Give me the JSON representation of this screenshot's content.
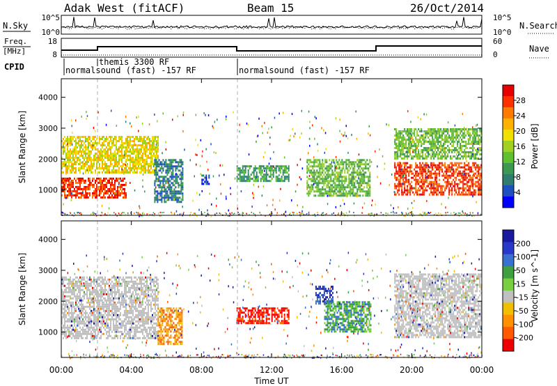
{
  "header": {
    "site": "Adak West (fitACF)",
    "beam": "Beam 15",
    "date": "26/Oct/2014"
  },
  "nsky_panel": {
    "left_label": "N.Sky",
    "right_label": "N.Search",
    "left_ticks": [
      "10^5",
      "10^0"
    ],
    "right_ticks": [
      "10^5",
      "10^0"
    ]
  },
  "freq_panel": {
    "left_label_line1": "Freq.",
    "left_label_line2": "[MHz]",
    "right_label": "Nave",
    "left_ticks": [
      "18",
      "8"
    ],
    "right_ticks": [
      "60",
      "0"
    ]
  },
  "cpid_panel": {
    "label": "CPID",
    "segments": [
      {
        "text": "normalsound (fast) -157 RF"
      },
      {
        "text": "themis 3300 RF"
      },
      {
        "text": "normalsound (fast) -157 RF"
      }
    ]
  },
  "time_axis": {
    "label": "Time UT",
    "ticks": [
      "00:00",
      "04:00",
      "08:00",
      "12:00",
      "16:00",
      "20:00",
      "00:00"
    ]
  },
  "chart_data": [
    {
      "type": "heatmap",
      "title": "",
      "ylabel": "Slant Range [km]",
      "xlabel": "Time UT",
      "ylim": [
        180,
        4600
      ],
      "yticks": [
        1000,
        2000,
        3000,
        4000
      ],
      "x_range_hours": [
        0,
        24
      ],
      "colorbar": {
        "label": "Power [dB]",
        "ticks": [
          4,
          8,
          12,
          16,
          20,
          24,
          28
        ],
        "colors": [
          "#0000ff",
          "#2050c0",
          "#2e7d6e",
          "#3c9a50",
          "#60c030",
          "#a0d020",
          "#f0e000",
          "#ffb000",
          "#ff7a00",
          "#ff3000",
          "#e60000"
        ]
      },
      "echo_regions": [
        {
          "t": [
            0.0,
            3.7
          ],
          "range_km": [
            780,
            1400
          ],
          "power_db": 28
        },
        {
          "t": [
            0.0,
            5.5
          ],
          "range_km": [
            1550,
            2750
          ],
          "power_db": 18
        },
        {
          "t": [
            5.3,
            6.9
          ],
          "range_km": [
            600,
            2000
          ],
          "power_db": 8
        },
        {
          "t": [
            8.0,
            8.4
          ],
          "range_km": [
            1200,
            1500
          ],
          "power_db": 5
        },
        {
          "t": [
            10.0,
            13.0
          ],
          "range_km": [
            1300,
            1800
          ],
          "power_db": 10
        },
        {
          "t": [
            14.0,
            17.6
          ],
          "range_km": [
            800,
            2000
          ],
          "power_db": 14
        },
        {
          "t": [
            19.0,
            24.0
          ],
          "range_km": [
            850,
            1900
          ],
          "power_db": 28
        },
        {
          "t": [
            19.0,
            24.0
          ],
          "range_km": [
            2000,
            3000
          ],
          "power_db": 14
        }
      ]
    },
    {
      "type": "heatmap",
      "title": "",
      "ylabel": "Slant Range [km]",
      "xlabel": "Time UT",
      "ylim": [
        180,
        4600
      ],
      "yticks": [
        1000,
        2000,
        3000,
        4000
      ],
      "x_range_hours": [
        0,
        24
      ],
      "colorbar": {
        "label": "Velocity [m s^-1]",
        "ticks": [
          200,
          100,
          50,
          15,
          -15,
          -50,
          -100,
          -200
        ],
        "colors": [
          "#1a1aa0",
          "#2838c8",
          "#3a70d0",
          "#40a040",
          "#78d040",
          "#c0c0c0",
          "#f0c000",
          "#ff9000",
          "#ff5a00",
          "#ee0000"
        ]
      },
      "echo_regions": [
        {
          "t": [
            0.0,
            5.5
          ],
          "range_km": [
            800,
            2800
          ],
          "velocity": 0
        },
        {
          "t": [
            5.5,
            6.9
          ],
          "range_km": [
            600,
            1800
          ],
          "velocity": -80
        },
        {
          "t": [
            10.0,
            13.0
          ],
          "range_km": [
            1300,
            1800
          ],
          "velocity": -150
        },
        {
          "t": [
            14.5,
            15.5
          ],
          "range_km": [
            1900,
            2500
          ],
          "velocity": 200
        },
        {
          "t": [
            15.0,
            17.7
          ],
          "range_km": [
            1000,
            2000
          ],
          "velocity": 60
        },
        {
          "t": [
            19.0,
            24.0
          ],
          "range_km": [
            850,
            2900
          ],
          "velocity": 0
        }
      ]
    }
  ]
}
